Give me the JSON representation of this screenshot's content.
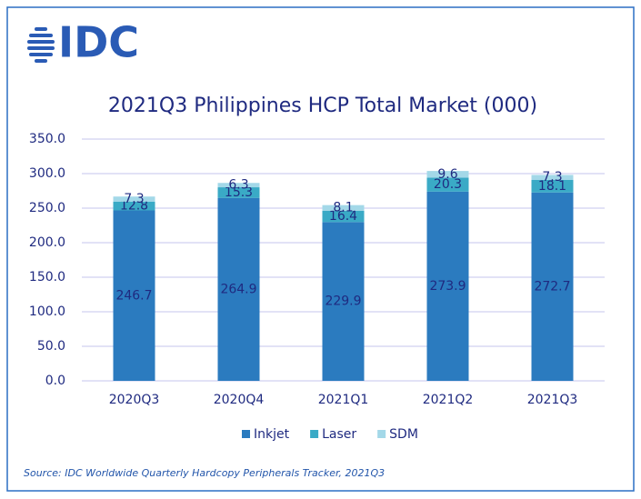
{
  "logo": "IDC",
  "chart_data": {
    "type": "stacked-bar",
    "title": "2021Q3 Philippines HCP Total Market (000)",
    "categories": [
      "2020Q3",
      "2020Q4",
      "2021Q1",
      "2021Q2",
      "2021Q3"
    ],
    "series": [
      {
        "name": "Inkjet",
        "color": "#2b7bbf",
        "values": [
          246.7,
          264.9,
          229.9,
          273.9,
          272.7
        ]
      },
      {
        "name": "Laser",
        "color": "#3aaac6",
        "values": [
          12.8,
          15.3,
          16.4,
          20.3,
          18.1
        ]
      },
      {
        "name": "SDM",
        "color": "#a3d8e8",
        "values": [
          7.3,
          6.3,
          8.1,
          9.6,
          7.3
        ]
      }
    ],
    "ylim": [
      0,
      350
    ],
    "yticks": [
      {
        "value": 0,
        "label": "0.0"
      },
      {
        "value": 50,
        "label": "50.0"
      },
      {
        "value": 100,
        "label": "100.0"
      },
      {
        "value": 150,
        "label": "150.0"
      },
      {
        "value": 200,
        "label": "200.0"
      },
      {
        "value": 250,
        "label": "250.0"
      },
      {
        "value": 300,
        "label": "300.0"
      },
      {
        "value": 350,
        "label": "350.0"
      }
    ],
    "grid": true,
    "legend": "bottom",
    "source": "Source: IDC Worldwide Quarterly Hardcopy Peripherals Tracker, 2021Q3"
  }
}
